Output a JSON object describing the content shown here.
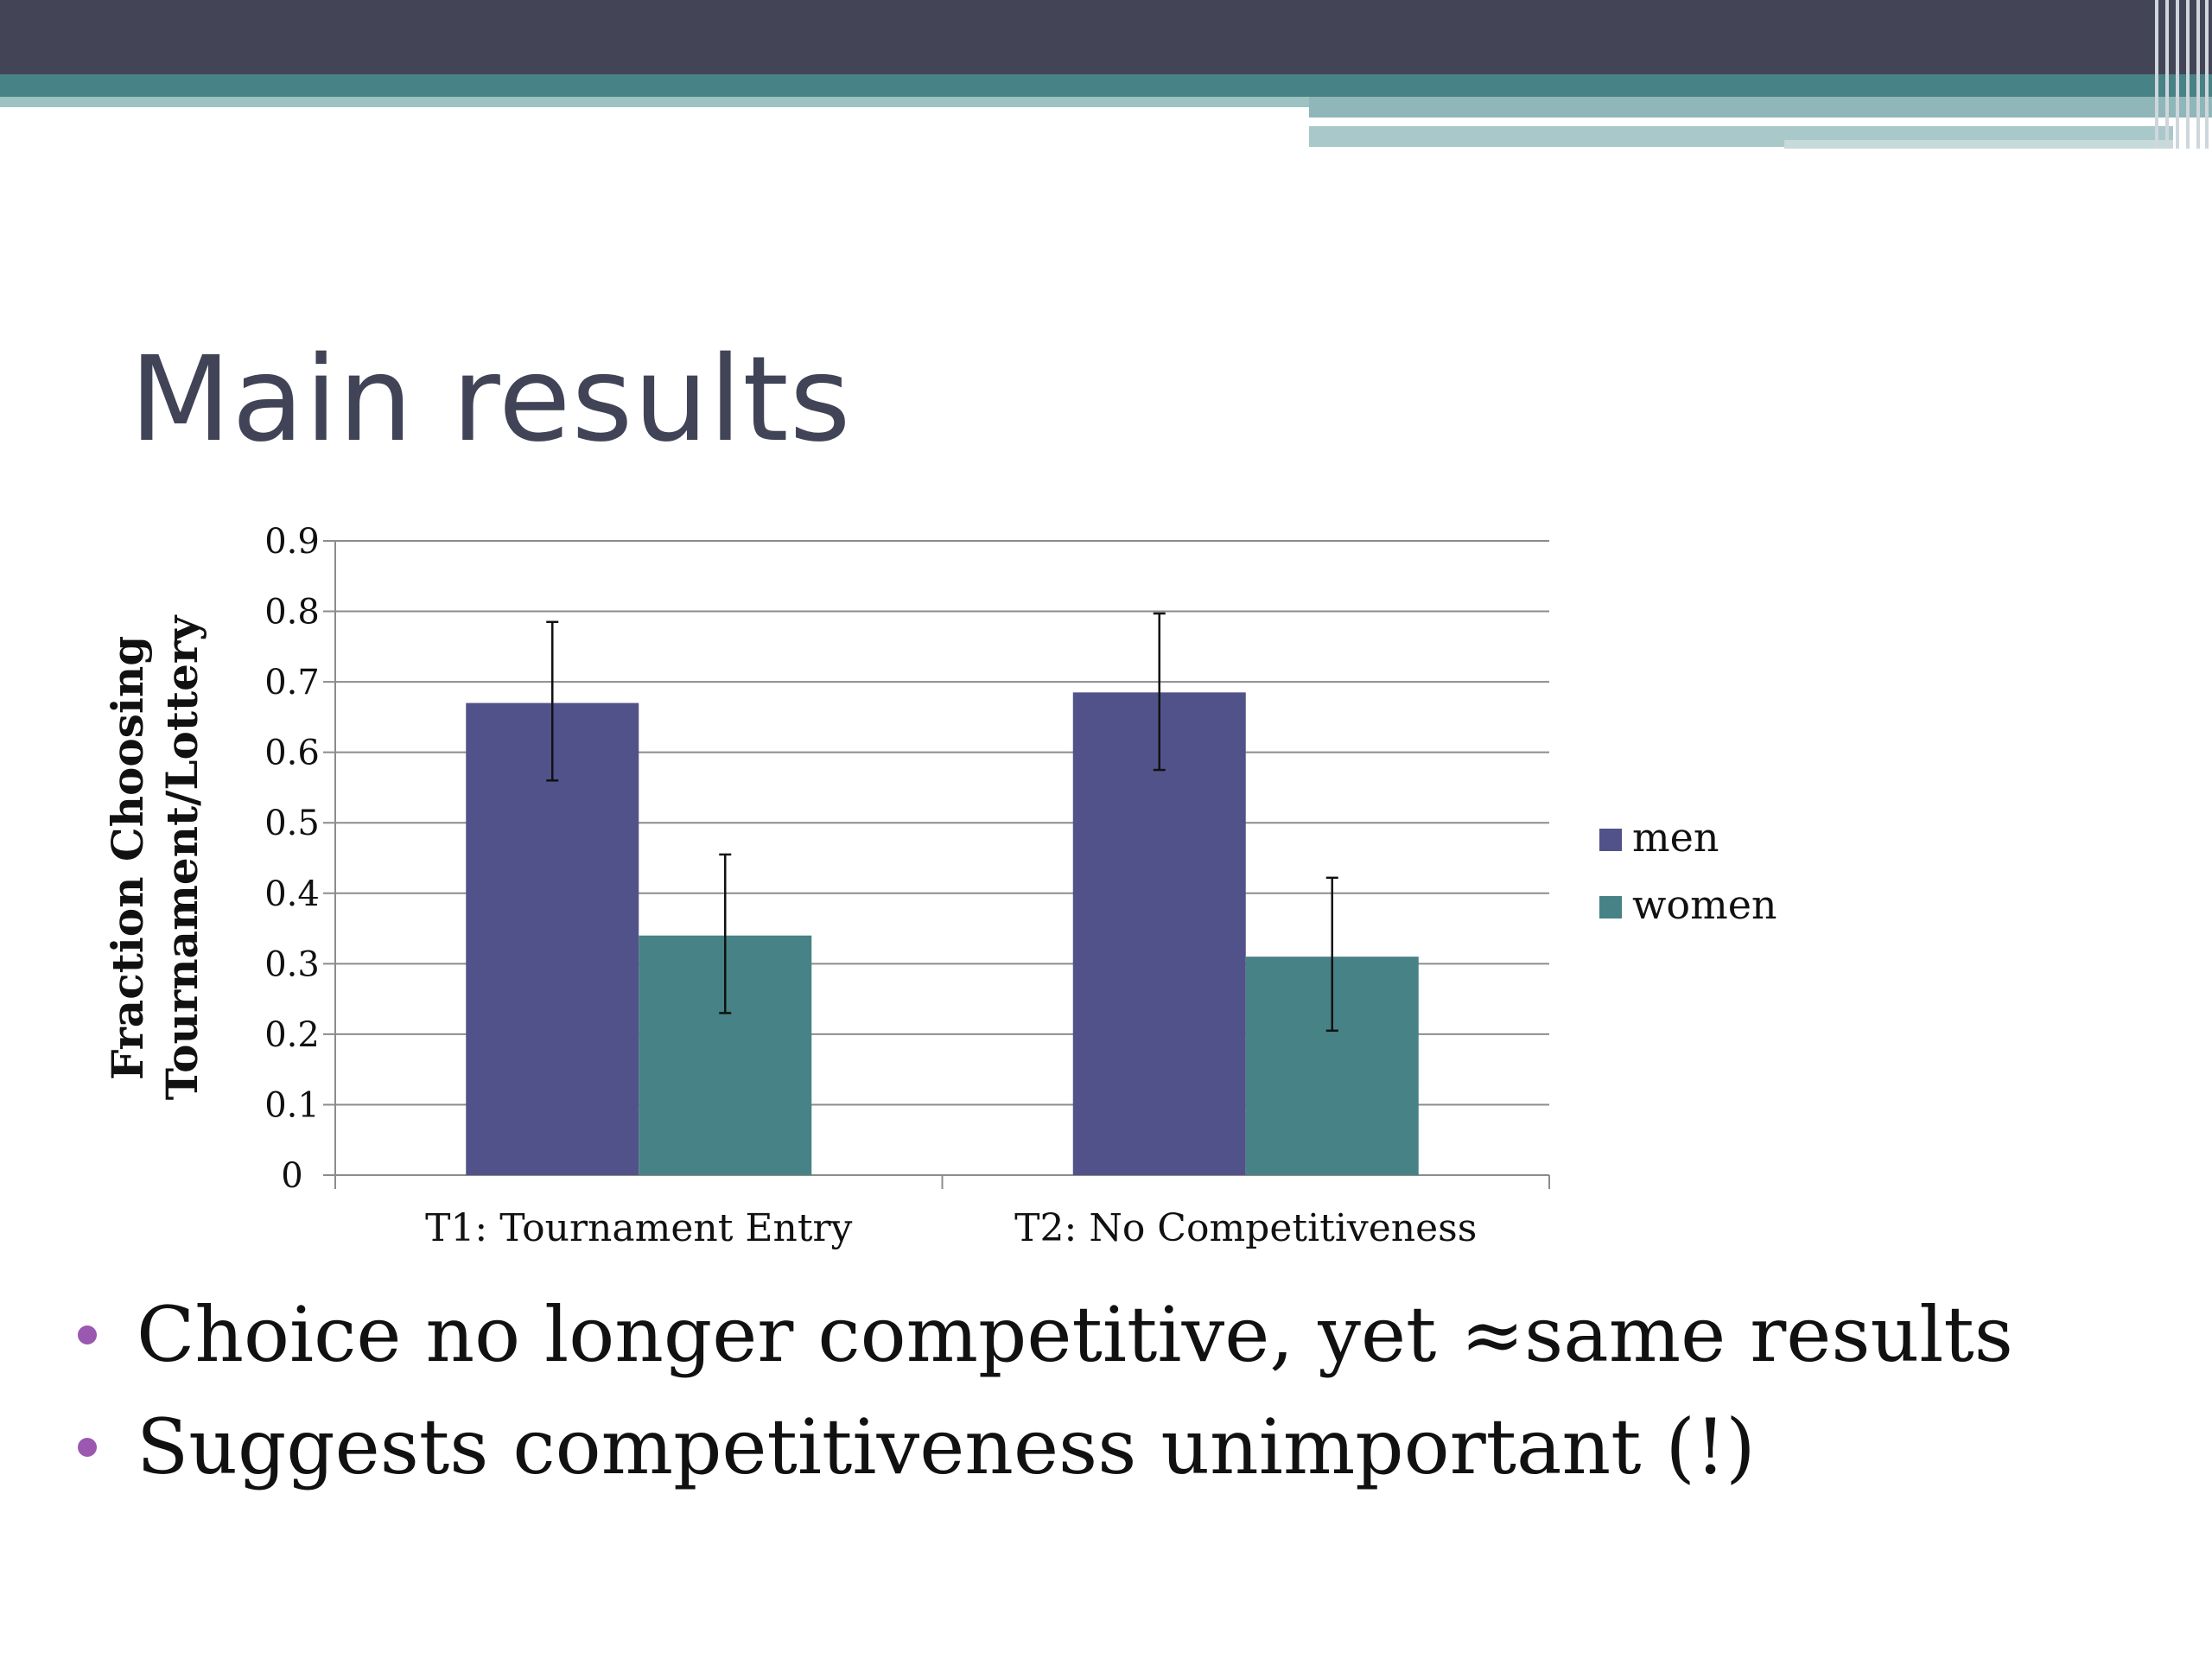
{
  "slide": {
    "title": "Main results",
    "bullets": [
      "Choice no longer competitive, yet ≈same results",
      "Suggests competitiveness unimportant (!)"
    ]
  },
  "colors": {
    "men": "#52528a",
    "women": "#478286",
    "bullet": "#9a58b0",
    "title": "#414457"
  },
  "chart_data": {
    "type": "bar",
    "title": "",
    "xlabel": "",
    "ylabel": "Fraction Choosing Tournament/Lottery",
    "ylabel_lines": [
      "Fraction Choosing",
      "Tournament/Lottery"
    ],
    "categories": [
      "T1: Tournament Entry",
      "T2: No Competitiveness"
    ],
    "ylim": [
      0,
      0.9
    ],
    "yticks": [
      "0",
      "0.1",
      "0.2",
      "0.3",
      "0.4",
      "0.5",
      "0.6",
      "0.7",
      "0.8",
      "0.9"
    ],
    "grid": true,
    "legend_position": "right",
    "series": [
      {
        "name": "men",
        "values": [
          0.67,
          0.685
        ],
        "error_low": [
          0.56,
          0.575
        ],
        "error_high": [
          0.785,
          0.797
        ]
      },
      {
        "name": "women",
        "values": [
          0.34,
          0.31
        ],
        "error_low": [
          0.23,
          0.205
        ],
        "error_high": [
          0.455,
          0.422
        ]
      }
    ]
  }
}
